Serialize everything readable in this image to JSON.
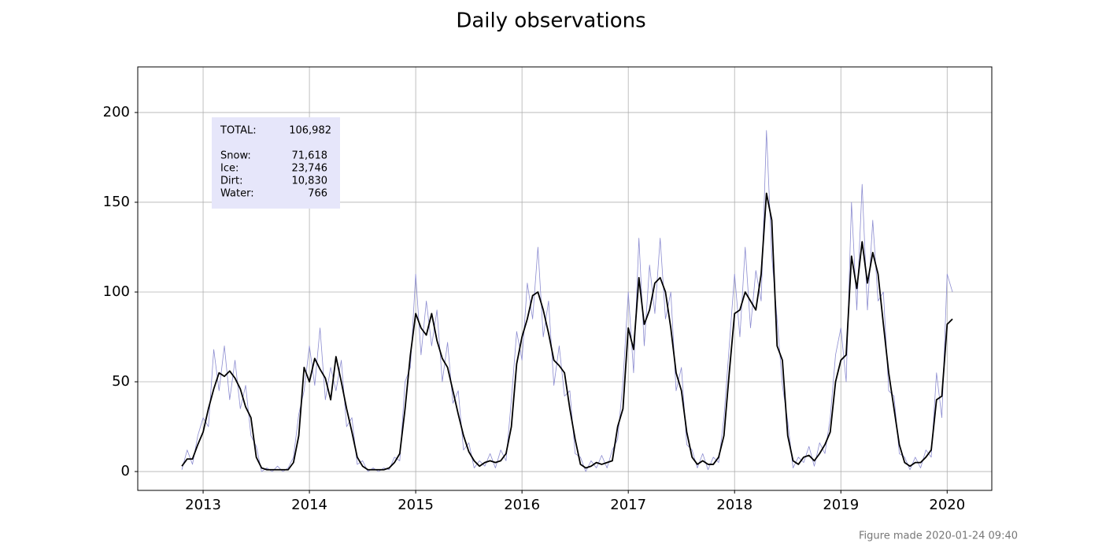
{
  "chart_data": {
    "type": "line",
    "title": "Daily observations",
    "footer": "Figure made 2020-01-24 09:40",
    "grid": true,
    "xlim": [
      2012.385,
      2020.42
    ],
    "ylim": [
      -10.5,
      225.4
    ],
    "xticks": [
      2013,
      2014,
      2015,
      2016,
      2017,
      2018,
      2019,
      2020
    ],
    "yticks": [
      0,
      50,
      100,
      150,
      200
    ],
    "x": [
      2012.8,
      2012.85,
      2012.9,
      2012.95,
      2013,
      2013.05,
      2013.1,
      2013.15,
      2013.2,
      2013.25,
      2013.3,
      2013.35,
      2013.4,
      2013.45,
      2013.5,
      2013.55,
      2013.6,
      2013.65,
      2013.7,
      2013.75,
      2013.8,
      2013.85,
      2013.9,
      2013.95,
      2014,
      2014.05,
      2014.1,
      2014.15,
      2014.2,
      2014.25,
      2014.3,
      2014.35,
      2014.4,
      2014.45,
      2014.5,
      2014.55,
      2014.6,
      2014.65,
      2014.7,
      2014.75,
      2014.8,
      2014.85,
      2014.9,
      2014.95,
      2015,
      2015.05,
      2015.1,
      2015.15,
      2015.2,
      2015.25,
      2015.3,
      2015.35,
      2015.4,
      2015.45,
      2015.5,
      2015.55,
      2015.6,
      2015.65,
      2015.7,
      2015.75,
      2015.8,
      2015.85,
      2015.9,
      2015.95,
      2016,
      2016.05,
      2016.1,
      2016.15,
      2016.2,
      2016.25,
      2016.3,
      2016.35,
      2016.4,
      2016.45,
      2016.5,
      2016.55,
      2016.6,
      2016.65,
      2016.7,
      2016.75,
      2016.8,
      2016.85,
      2016.9,
      2016.95,
      2017,
      2017.05,
      2017.1,
      2017.15,
      2017.2,
      2017.25,
      2017.3,
      2017.35,
      2017.4,
      2017.45,
      2017.5,
      2017.55,
      2017.6,
      2017.65,
      2017.7,
      2017.75,
      2017.8,
      2017.85,
      2017.9,
      2017.95,
      2018,
      2018.05,
      2018.1,
      2018.15,
      2018.2,
      2018.25,
      2018.3,
      2018.35,
      2018.4,
      2018.45,
      2018.5,
      2018.55,
      2018.6,
      2018.65,
      2018.7,
      2018.75,
      2018.8,
      2018.85,
      2018.9,
      2018.95,
      2019,
      2019.05,
      2019.1,
      2019.15,
      2019.2,
      2019.25,
      2019.3,
      2019.35,
      2019.4,
      2019.45,
      2019.5,
      2019.55,
      2019.6,
      2019.65,
      2019.7,
      2019.75,
      2019.8,
      2019.85,
      2019.9,
      2019.95,
      2020,
      2020.05
    ],
    "series": [
      {
        "color": "#8c8cd0",
        "width": 0.8,
        "values": [
          1,
          12,
          4,
          20,
          30,
          25,
          68,
          45,
          70,
          40,
          62,
          35,
          48,
          20,
          14,
          0,
          2,
          0,
          3,
          0,
          2,
          8,
          32,
          45,
          70,
          48,
          80,
          40,
          58,
          45,
          62,
          25,
          30,
          4,
          6,
          0,
          2,
          0,
          2,
          1,
          8,
          6,
          50,
          58,
          110,
          65,
          95,
          70,
          90,
          50,
          72,
          38,
          45,
          12,
          16,
          2,
          6,
          3,
          10,
          2,
          12,
          6,
          40,
          78,
          62,
          105,
          85,
          125,
          75,
          95,
          48,
          70,
          42,
          45,
          10,
          8,
          0,
          6,
          2,
          9,
          2,
          12,
          18,
          50,
          100,
          55,
          130,
          70,
          115,
          88,
          130,
          85,
          100,
          45,
          58,
          15,
          12,
          2,
          10,
          1,
          8,
          5,
          30,
          70,
          110,
          75,
          125,
          80,
          112,
          95,
          190,
          120,
          85,
          48,
          28,
          2,
          8,
          5,
          14,
          3,
          16,
          10,
          30,
          65,
          80,
          50,
          150,
          90,
          160,
          90,
          140,
          95,
          100,
          45,
          42,
          10,
          8,
          1,
          8,
          2,
          12,
          8,
          55,
          30,
          110,
          100
        ]
      },
      {
        "color": "#000000",
        "width": 1.8,
        "values": [
          3,
          7,
          7,
          15,
          22,
          35,
          46,
          55,
          53,
          56,
          52,
          46,
          36,
          30,
          8,
          2,
          1,
          1,
          1,
          1,
          1,
          5,
          20,
          58,
          50,
          63,
          57,
          52,
          40,
          64,
          50,
          35,
          22,
          8,
          3,
          1,
          1,
          1,
          1,
          2,
          5,
          10,
          35,
          65,
          88,
          80,
          76,
          88,
          73,
          63,
          58,
          45,
          32,
          20,
          11,
          6,
          3,
          5,
          6,
          5,
          6,
          10,
          25,
          60,
          75,
          85,
          98,
          100,
          90,
          77,
          62,
          59,
          55,
          35,
          18,
          4,
          2,
          3,
          5,
          4,
          5,
          6,
          25,
          35,
          80,
          68,
          108,
          82,
          90,
          105,
          108,
          100,
          80,
          55,
          45,
          22,
          8,
          4,
          6,
          4,
          4,
          8,
          20,
          55,
          88,
          90,
          100,
          95,
          90,
          110,
          155,
          140,
          70,
          62,
          20,
          6,
          4,
          8,
          9,
          6,
          10,
          15,
          22,
          50,
          62,
          65,
          120,
          102,
          128,
          105,
          122,
          110,
          82,
          55,
          35,
          15,
          5,
          3,
          5,
          5,
          8,
          12,
          40,
          42,
          82,
          85
        ]
      }
    ],
    "summary_box": {
      "color": "#e6e6fa",
      "rows": [
        {
          "label": "TOTAL:",
          "value": "106,982"
        },
        {
          "label": "Snow:",
          "value": "71,618"
        },
        {
          "label": "Ice:",
          "value": "23,746"
        },
        {
          "label": "Dirt:",
          "value": "10,830"
        },
        {
          "label": "Water:",
          "value": "766"
        }
      ]
    }
  }
}
